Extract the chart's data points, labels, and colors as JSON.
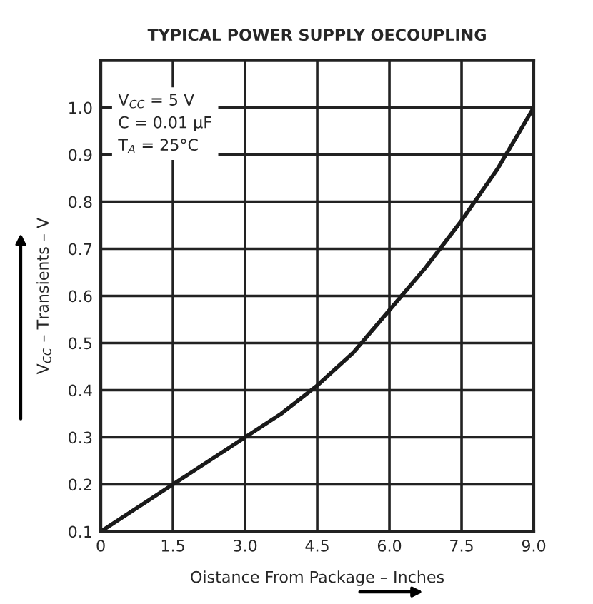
{
  "chart_data": {
    "type": "line",
    "title": "TYPICAL POWER SUPPLY OECOUPLING",
    "xlabel": "Oistance From Package – Inches",
    "ylabel": "V$_{CC}$ – Transients – V",
    "annotations": [
      "V$_{CC}$ = 5 V\nC = 0.01 µF\nT$_{A}$ = 25°C"
    ],
    "x": [
      0,
      0.75,
      1.5,
      2.25,
      3.0,
      3.75,
      4.5,
      5.25,
      6.0,
      6.75,
      7.5,
      8.25,
      9.0
    ],
    "series": [
      {
        "color": "#1a1a1a",
        "values": [
          0.1,
          0.15,
          0.2,
          0.25,
          0.3,
          0.35,
          0.41,
          0.48,
          0.57,
          0.66,
          0.76,
          0.87,
          1.0
        ]
      }
    ],
    "xlim": [
      0,
      9
    ],
    "ylim": [
      0.1,
      1.1
    ],
    "xticks": [
      {
        "value": 0,
        "label": "0"
      },
      1.5,
      {
        "value": 3,
        "label": "3.0"
      },
      4.5,
      {
        "value": 6,
        "label": "6.0"
      },
      7.5,
      {
        "value": 9,
        "label": "9.0"
      }
    ],
    "yticks": [
      0.1,
      0.2,
      0.3,
      0.4,
      0.5,
      0.6,
      0.7,
      0.8,
      0.9,
      {
        "value": 1,
        "label": "1.0"
      }
    ],
    "grid": true,
    "legend": false,
    "marker": "none",
    "line_style": "solid"
  }
}
